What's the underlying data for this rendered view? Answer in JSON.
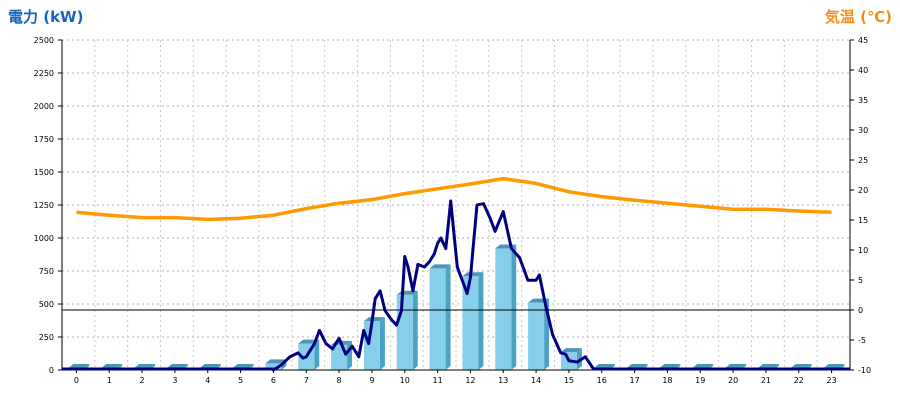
{
  "chart_data": {
    "type": "bar+line",
    "left_axis_title": "電力 (kW)",
    "right_axis_title": "気温 (℃)",
    "left_ylim": [
      0,
      2500
    ],
    "left_ticks": [
      "0",
      "250",
      "500",
      "750",
      "1000",
      "1250",
      "1500",
      "1750",
      "2000",
      "2250",
      "2500"
    ],
    "right_ylim": [
      -10,
      45
    ],
    "right_ticks": [
      "-10",
      "-5",
      "0",
      "5",
      "10",
      "15",
      "20",
      "25",
      "30",
      "35",
      "40",
      "45"
    ],
    "categories": [
      "0",
      "1",
      "2",
      "3",
      "4",
      "5",
      "6",
      "7",
      "8",
      "9",
      "10",
      "11",
      "12",
      "13",
      "14",
      "15",
      "16",
      "17",
      "18",
      "19",
      "20",
      "21",
      "22",
      "23"
    ],
    "bar_values": [
      0,
      0,
      0,
      0,
      0,
      0,
      50,
      200,
      190,
      370,
      570,
      770,
      710,
      920,
      510,
      135,
      0,
      0,
      0,
      0,
      0,
      0,
      0,
      0
    ],
    "power_line_x": [
      6.0,
      6.25,
      6.5,
      6.75,
      6.9,
      7.0,
      7.25,
      7.4,
      7.6,
      7.8,
      8.0,
      8.2,
      8.4,
      8.6,
      8.75,
      8.9,
      9.0,
      9.1,
      9.25,
      9.4,
      9.6,
      9.75,
      9.9,
      10.0,
      10.1,
      10.25,
      10.4,
      10.6,
      10.75,
      10.9,
      11.0,
      11.1,
      11.25,
      11.4,
      11.6,
      11.75,
      11.9,
      12.0,
      12.2,
      12.4,
      12.6,
      12.75,
      13.0,
      13.25,
      13.5,
      13.75,
      14.0,
      14.1,
      14.3,
      14.5,
      14.75,
      14.9,
      15.0,
      15.25,
      15.5
    ],
    "power_line_y": [
      0,
      40,
      100,
      130,
      90,
      100,
      200,
      300,
      200,
      160,
      240,
      120,
      180,
      100,
      300,
      200,
      360,
      540,
      600,
      450,
      380,
      340,
      450,
      860,
      780,
      600,
      800,
      780,
      820,
      880,
      960,
      1000,
      920,
      1280,
      780,
      680,
      580,
      700,
      1250,
      1260,
      1150,
      1050,
      1200,
      920,
      850,
      680,
      680,
      720,
      480,
      270,
      130,
      120,
      70,
      60,
      100
    ],
    "temperature_x": [
      0,
      1,
      2,
      3,
      4,
      5,
      6,
      7,
      8,
      9,
      10,
      11,
      12,
      13,
      14,
      15,
      16,
      17,
      18,
      19,
      20,
      21,
      22,
      23
    ],
    "temperature_y": [
      16.3,
      15.8,
      15.4,
      15.4,
      15.1,
      15.3,
      15.8,
      16.9,
      17.8,
      18.4,
      19.4,
      20.2,
      21.0,
      21.9,
      21.1,
      19.7,
      18.9,
      18.3,
      17.8,
      17.3,
      16.8,
      16.8,
      16.5,
      16.3
    ],
    "grid": true,
    "colors": {
      "bar": "#87ceeb",
      "bar_side": "#4aa3c4",
      "bar_top": "#4e94b7",
      "power_line": "#000080",
      "temperature_line": "#ff9900",
      "title_left": "#1565b8",
      "title_right": "#f0901a"
    }
  }
}
